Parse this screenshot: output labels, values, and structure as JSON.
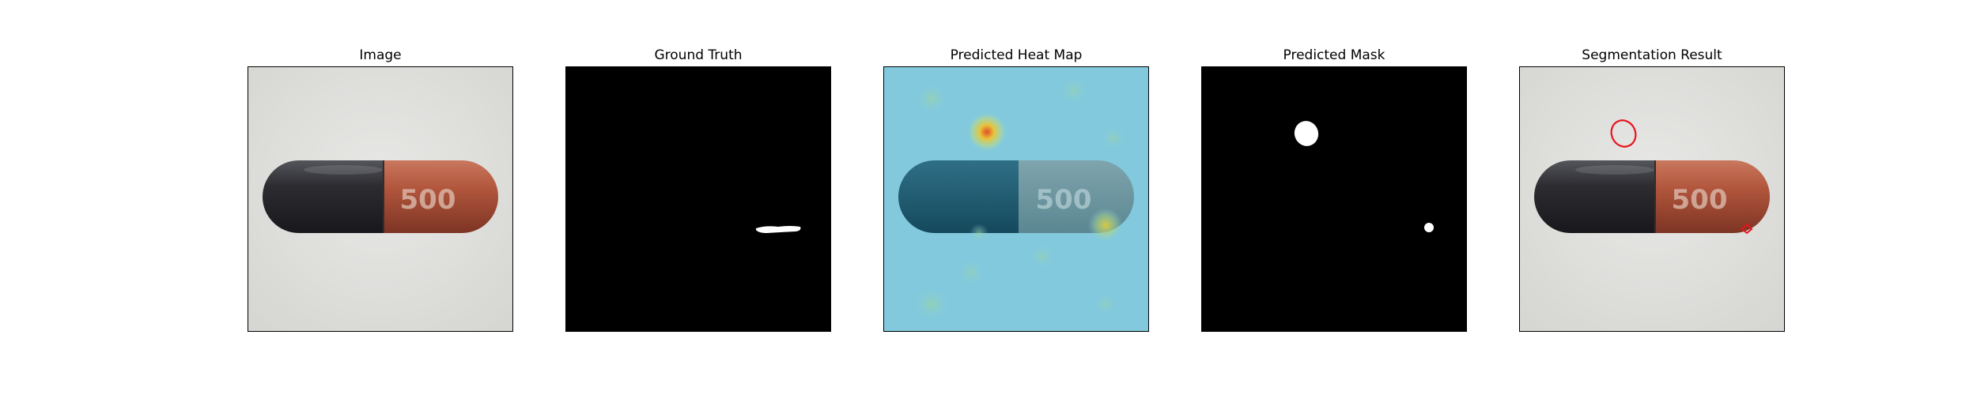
{
  "panels": [
    {
      "title": "Image"
    },
    {
      "title": "Ground Truth"
    },
    {
      "title": "Predicted Heat Map"
    },
    {
      "title": "Predicted Mask"
    },
    {
      "title": "Segmentation Result"
    }
  ],
  "capsule": {
    "imprint": "500"
  },
  "colors": {
    "photo_background": "#e3e3e0",
    "capsule_dark": "#2f2f35",
    "capsule_orange": "#b0553c",
    "mask_background": "#000000",
    "mask_foreground": "#ffffff",
    "heatmap_base": "#86cde0",
    "contour": "#e8141c"
  }
}
